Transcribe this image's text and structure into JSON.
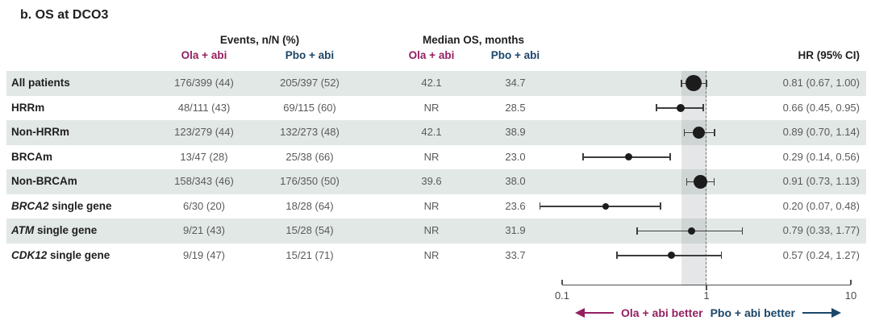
{
  "figure": {
    "title": "b. OS at DCO3",
    "headers": {
      "events_group": "Events, n/N (%)",
      "median_group": "Median OS, months",
      "arm_ola": "Ola + abi",
      "arm_pbo": "Pbo + abi",
      "hr": "HR (95% CI)"
    },
    "legend": {
      "left_label": "Ola + abi better",
      "right_label": "Pbo + abi better"
    },
    "colors": {
      "ola_accent": "#942061",
      "pbo_accent": "#1C4668",
      "row_shade": "#E2E8E6",
      "marker": "#1C1C1C"
    }
  },
  "chart_data": {
    "type": "forest",
    "x_axis": {
      "scale": "log10",
      "min": 0.1,
      "max": 10,
      "tick_labels": [
        "0.1",
        "1",
        "10"
      ],
      "reference_line": 1,
      "shaded_band": [
        0.67,
        1.0
      ]
    },
    "rows": [
      {
        "label_italic": "",
        "label_rest": "All patients",
        "events_ola": "176/399 (44)",
        "events_pbo": "205/397 (52)",
        "median_ola": "42.1",
        "median_pbo": "34.7",
        "hr": 0.81,
        "ci_low": 0.67,
        "ci_high": 1.0,
        "hr_text": "0.81 (0.67, 1.00)",
        "marker_size": 20,
        "shaded": true
      },
      {
        "label_italic": "",
        "label_rest": "HRRm",
        "events_ola": "48/111 (43)",
        "events_pbo": "69/115 (60)",
        "median_ola": "NR",
        "median_pbo": "28.5",
        "hr": 0.66,
        "ci_low": 0.45,
        "ci_high": 0.95,
        "hr_text": "0.66 (0.45, 0.95)",
        "marker_size": 10,
        "shaded": false
      },
      {
        "label_italic": "",
        "label_rest": "Non-HRRm",
        "events_ola": "123/279 (44)",
        "events_pbo": "132/273 (48)",
        "median_ola": "42.1",
        "median_pbo": "38.9",
        "hr": 0.89,
        "ci_low": 0.7,
        "ci_high": 1.14,
        "hr_text": "0.89 (0.70, 1.14)",
        "marker_size": 15,
        "shaded": true
      },
      {
        "label_italic": "",
        "label_rest": "BRCAm",
        "events_ola": "13/47 (28)",
        "events_pbo": "25/38 (66)",
        "median_ola": "NR",
        "median_pbo": "23.0",
        "hr": 0.29,
        "ci_low": 0.14,
        "ci_high": 0.56,
        "hr_text": "0.29 (0.14, 0.56)",
        "marker_size": 9,
        "shaded": false
      },
      {
        "label_italic": "",
        "label_rest": "Non-BRCAm",
        "events_ola": "158/343 (46)",
        "events_pbo": "176/350 (50)",
        "median_ola": "39.6",
        "median_pbo": "38.0",
        "hr": 0.91,
        "ci_low": 0.73,
        "ci_high": 1.13,
        "hr_text": "0.91 (0.73, 1.13)",
        "marker_size": 17,
        "shaded": true
      },
      {
        "label_italic": "BRCA2",
        "label_rest": " single gene",
        "events_ola": "6/30 (20)",
        "events_pbo": "18/28 (64)",
        "median_ola": "NR",
        "median_pbo": "23.6",
        "hr": 0.2,
        "ci_low": 0.07,
        "ci_high": 0.48,
        "hr_text": "0.20 (0.07, 0.48)",
        "marker_size": 8,
        "shaded": false
      },
      {
        "label_italic": "ATM",
        "label_rest": " single gene",
        "events_ola": "9/21 (43)",
        "events_pbo": "15/28 (54)",
        "median_ola": "NR",
        "median_pbo": "31.9",
        "hr": 0.79,
        "ci_low": 0.33,
        "ci_high": 1.77,
        "hr_text": "0.79 (0.33, 1.77)",
        "marker_size": 9,
        "shaded": true
      },
      {
        "label_italic": "CDK12",
        "label_rest": " single gene",
        "events_ola": "9/19 (47)",
        "events_pbo": "15/21 (71)",
        "median_ola": "NR",
        "median_pbo": "33.7",
        "hr": 0.57,
        "ci_low": 0.24,
        "ci_high": 1.27,
        "hr_text": "0.57 (0.24, 1.27)",
        "marker_size": 9,
        "shaded": false
      }
    ]
  }
}
